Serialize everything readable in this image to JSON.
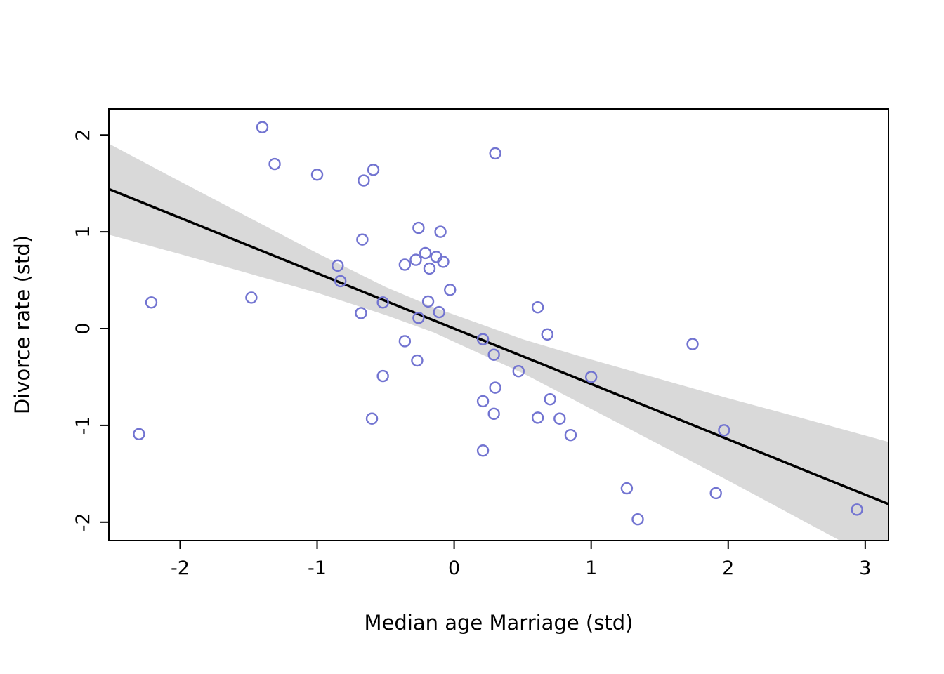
{
  "figure": {
    "background": "#ffffff"
  },
  "chart_data": {
    "type": "scatter",
    "title": "",
    "xlabel": "Median age Marriage (std)",
    "ylabel": "Divorce rate (std)",
    "xlim": [
      -2.52,
      3.17
    ],
    "ylim": [
      -2.19,
      2.27
    ],
    "x_ticks": [
      -2,
      -1,
      0,
      1,
      2,
      3
    ],
    "x_tick_labels": [
      "-2",
      "-1",
      "0",
      "1",
      "2",
      "3"
    ],
    "y_ticks": [
      -2,
      -1,
      0,
      1,
      2
    ],
    "y_tick_labels": [
      "-2",
      "-1",
      "0",
      "1",
      "2"
    ],
    "grid": false,
    "legend": "none",
    "point_color": "#7274d1",
    "line_color": "#000000",
    "band_color": "rgba(0,0,0,0.15)",
    "regression": {
      "slope": -0.572,
      "intercept": 0.0
    },
    "confidence_band": {
      "x": [
        -2.52,
        -2.0,
        -1.5,
        -1.0,
        -0.5,
        -0.15,
        0.5,
        1.0,
        1.5,
        2.0,
        2.5,
        3.17
      ],
      "upper": [
        1.91,
        1.52,
        1.15,
        0.78,
        0.43,
        0.22,
        -0.11,
        -0.32,
        -0.52,
        -0.72,
        -0.91,
        -1.17
      ],
      "lower": [
        0.97,
        0.77,
        0.57,
        0.37,
        0.14,
        -0.04,
        -0.46,
        -0.83,
        -1.2,
        -1.57,
        -1.95,
        -2.46
      ]
    },
    "points": [
      [
        -1.4,
        2.08
      ],
      [
        -1.31,
        1.7
      ],
      [
        -1.0,
        1.59
      ],
      [
        -0.66,
        1.53
      ],
      [
        -0.59,
        1.64
      ],
      [
        0.3,
        1.81
      ],
      [
        -0.26,
        1.04
      ],
      [
        -0.1,
        1.0
      ],
      [
        -0.67,
        0.92
      ],
      [
        -0.85,
        0.65
      ],
      [
        -0.83,
        0.49
      ],
      [
        -0.36,
        0.66
      ],
      [
        -0.28,
        0.71
      ],
      [
        -0.21,
        0.78
      ],
      [
        -0.18,
        0.62
      ],
      [
        -0.13,
        0.74
      ],
      [
        -0.08,
        0.69
      ],
      [
        -0.03,
        0.4
      ],
      [
        -1.48,
        0.32
      ],
      [
        -2.21,
        0.27
      ],
      [
        -0.52,
        0.27
      ],
      [
        -0.19,
        0.28
      ],
      [
        -0.68,
        0.16
      ],
      [
        -0.26,
        0.11
      ],
      [
        -0.11,
        0.17
      ],
      [
        0.61,
        0.22
      ],
      [
        0.68,
        -0.06
      ],
      [
        -0.36,
        -0.13
      ],
      [
        0.21,
        -0.11
      ],
      [
        1.74,
        -0.16
      ],
      [
        -0.27,
        -0.33
      ],
      [
        0.29,
        -0.27
      ],
      [
        -0.52,
        -0.49
      ],
      [
        0.47,
        -0.44
      ],
      [
        1.0,
        -0.5
      ],
      [
        0.3,
        -0.61
      ],
      [
        0.21,
        -0.75
      ],
      [
        0.7,
        -0.73
      ],
      [
        0.29,
        -0.88
      ],
      [
        -0.6,
        -0.93
      ],
      [
        0.61,
        -0.92
      ],
      [
        0.77,
        -0.93
      ],
      [
        0.85,
        -1.1
      ],
      [
        -2.3,
        -1.09
      ],
      [
        0.21,
        -1.26
      ],
      [
        1.97,
        -1.05
      ],
      [
        1.26,
        -1.65
      ],
      [
        1.91,
        -1.7
      ],
      [
        1.34,
        -1.97
      ],
      [
        2.94,
        -1.87
      ]
    ]
  }
}
